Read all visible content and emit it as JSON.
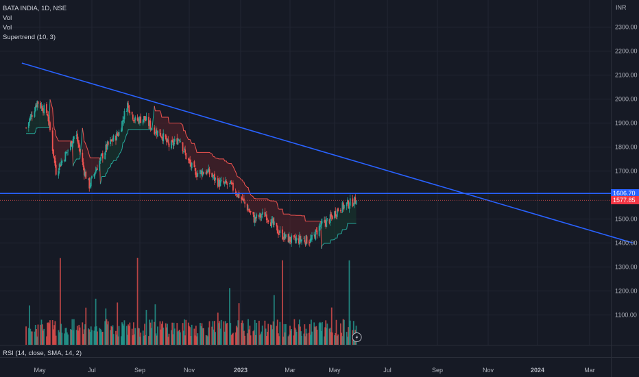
{
  "legend": {
    "symbol": "BATA INDIA, 1D, NSE",
    "vol_1": "Vol",
    "vol_2": "Vol",
    "supertrend": "Supertrend (10, 3)"
  },
  "rsi_label": "RSI (14, close, SMA, 14, 2)",
  "currency": "INR",
  "price_tags": {
    "line_level": "1606.70",
    "last_price": "1577.85"
  },
  "colors": {
    "background": "#161a25",
    "up": "#26a69a",
    "down": "#ef5350",
    "trendline": "#2962ff",
    "supertrend_down_fill": "#5a2329",
    "supertrend_up_fill": "#173a30",
    "last_price_tag": "#f23645",
    "line_tag": "#2962ff"
  },
  "chart_data": {
    "type": "candlestick",
    "title": "BATA INDIA, 1D, NSE",
    "yaxis": {
      "ticks": [
        2300,
        2200,
        2100,
        2000,
        1900,
        1800,
        1700,
        1600,
        1500,
        1400,
        1300,
        1200,
        1100
      ],
      "tick_labels": [
        "2300.00",
        "2200.00",
        "2100.00",
        "2000.00",
        "1900.00",
        "1800.00",
        "1700.00",
        "1600.00",
        "1500.00",
        "1400.00",
        "1300.00",
        "1200.00",
        "1100.00"
      ],
      "unit": "INR"
    },
    "xaxis": {
      "tick_labels": [
        "May",
        "Jul",
        "Sep",
        "Nov",
        "2023",
        "Mar",
        "May",
        "Jul",
        "Sep",
        "Nov",
        "2024",
        "Mar"
      ],
      "tick_dates": [
        "2022-05-01",
        "2022-07-01",
        "2022-09-01",
        "2022-11-01",
        "2023-01-01",
        "2023-03-01",
        "2023-05-01",
        "2023-07-01",
        "2023-09-01",
        "2023-11-01",
        "2024-01-01",
        "2024-03-01"
      ],
      "range": [
        "2022-04-10",
        "2024-04-20"
      ]
    },
    "close_anchors": [
      {
        "date": "2022-04-15",
        "close": 1880
      },
      {
        "date": "2022-04-28",
        "close": 1990
      },
      {
        "date": "2022-05-10",
        "close": 1940
      },
      {
        "date": "2022-05-20",
        "close": 1700
      },
      {
        "date": "2022-06-02",
        "close": 1780
      },
      {
        "date": "2022-06-12",
        "close": 1860
      },
      {
        "date": "2022-06-22",
        "close": 1700
      },
      {
        "date": "2022-06-28",
        "close": 1640
      },
      {
        "date": "2022-07-08",
        "close": 1720
      },
      {
        "date": "2022-07-20",
        "close": 1800
      },
      {
        "date": "2022-08-05",
        "close": 1860
      },
      {
        "date": "2022-08-16",
        "close": 1980
      },
      {
        "date": "2022-08-26",
        "close": 1910
      },
      {
        "date": "2022-09-06",
        "close": 1920
      },
      {
        "date": "2022-09-16",
        "close": 1880
      },
      {
        "date": "2022-09-28",
        "close": 1850
      },
      {
        "date": "2022-10-08",
        "close": 1800
      },
      {
        "date": "2022-10-20",
        "close": 1840
      },
      {
        "date": "2022-10-28",
        "close": 1760
      },
      {
        "date": "2022-11-08",
        "close": 1690
      },
      {
        "date": "2022-11-22",
        "close": 1700
      },
      {
        "date": "2022-12-06",
        "close": 1650
      },
      {
        "date": "2022-12-20",
        "close": 1640
      },
      {
        "date": "2023-01-03",
        "close": 1580
      },
      {
        "date": "2023-01-17",
        "close": 1500
      },
      {
        "date": "2023-01-31",
        "close": 1520
      },
      {
        "date": "2023-02-14",
        "close": 1450
      },
      {
        "date": "2023-02-24",
        "close": 1420
      },
      {
        "date": "2023-03-06",
        "close": 1410
      },
      {
        "date": "2023-03-18",
        "close": 1415
      },
      {
        "date": "2023-03-30",
        "close": 1410
      },
      {
        "date": "2023-04-11",
        "close": 1470
      },
      {
        "date": "2023-04-25",
        "close": 1500
      },
      {
        "date": "2023-05-05",
        "close": 1540
      },
      {
        "date": "2023-05-15",
        "close": 1560
      },
      {
        "date": "2023-05-26",
        "close": 1578
      }
    ],
    "volume_note": "daily volume histogram along bottom, colored by candle direction; spikes near 2022-05-25, 2023-02-20, 2023-05-18",
    "supertrend": {
      "period": 10,
      "multiplier": 3
    },
    "horizontal_line": {
      "price": 1606.7
    },
    "trendline": {
      "from": {
        "date": "2022-04-10",
        "price": 2150
      },
      "to": {
        "date": "2024-04-20",
        "price": 1400
      }
    },
    "last_price": 1577.85
  }
}
